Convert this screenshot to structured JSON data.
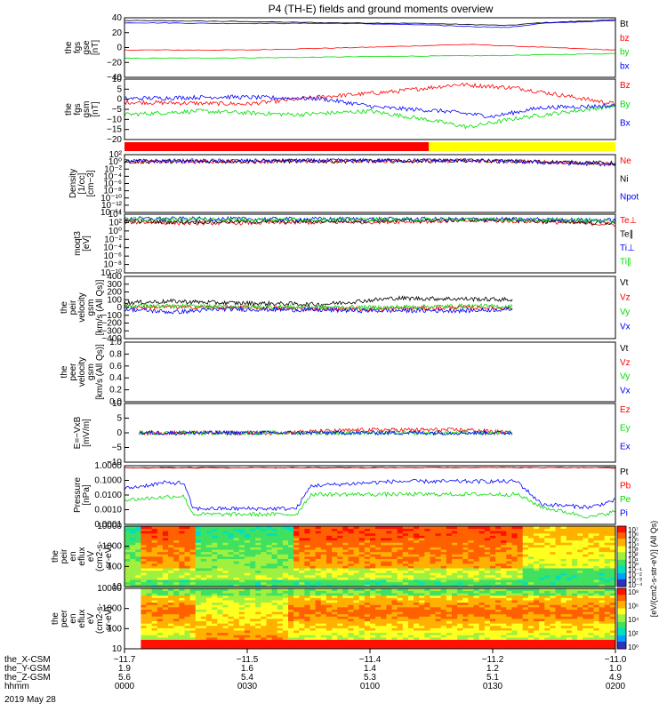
{
  "title": "P4 (TH-E) fields and ground moments overview",
  "colors": {
    "black": "#000000",
    "red": "#ff0000",
    "green": "#00dd00",
    "blue": "#0000ff",
    "yellow": "#ffff00"
  },
  "chart_data": [
    {
      "type": "line",
      "id": "fgs_hi",
      "ylabel": [
        "the",
        "fgs",
        "gse",
        "[nT]"
      ],
      "ylim": [
        -40,
        45
      ],
      "yticks": [
        "40",
        "20",
        "0",
        "−20",
        "−40"
      ],
      "series": [
        {
          "name": "Bt",
          "color": "#000000",
          "mode": "smooth",
          "points": [
            [
              0,
              41
            ],
            [
              0.2,
              40
            ],
            [
              0.4,
              38
            ],
            [
              0.6,
              37
            ],
            [
              0.78,
              34
            ],
            [
              0.85,
              38
            ],
            [
              1,
              42
            ]
          ]
        },
        {
          "name": "bz",
          "color": "#ff0000",
          "mode": "smooth",
          "points": [
            [
              0,
              -1
            ],
            [
              0.25,
              -1
            ],
            [
              0.5,
              3
            ],
            [
              0.7,
              7
            ],
            [
              0.85,
              3
            ],
            [
              1,
              -1
            ]
          ]
        },
        {
          "name": "by",
          "color": "#00dd00",
          "mode": "smooth",
          "points": [
            [
              0,
              -13
            ],
            [
              0.3,
              -12
            ],
            [
              0.55,
              -10
            ],
            [
              0.75,
              -9
            ],
            [
              1,
              -6
            ]
          ]
        },
        {
          "name": "bx",
          "color": "#0000ff",
          "mode": "smooth",
          "points": [
            [
              0,
              38
            ],
            [
              0.2,
              37
            ],
            [
              0.45,
              37
            ],
            [
              0.6,
              35
            ],
            [
              0.78,
              31
            ],
            [
              0.85,
              37
            ],
            [
              1,
              41
            ]
          ]
        }
      ]
    },
    {
      "type": "line",
      "id": "fgs_lo",
      "ylabel": [
        "the",
        "fgs",
        "gsm",
        "[nT]"
      ],
      "ylim": [
        -22,
        12
      ],
      "yticks": [
        "10",
        "5",
        "0",
        "−5",
        "−10",
        "−15",
        "−20"
      ],
      "series": [
        {
          "name": "Bz",
          "color": "#ff0000",
          "mode": "noisy",
          "points": [
            [
              0,
              -1
            ],
            [
              0.25,
              -2
            ],
            [
              0.4,
              2
            ],
            [
              0.55,
              5
            ],
            [
              0.68,
              9
            ],
            [
              0.8,
              7
            ],
            [
              1,
              -2
            ]
          ]
        },
        {
          "name": "By",
          "color": "#00dd00",
          "mode": "noisy",
          "points": [
            [
              0,
              -8
            ],
            [
              0.15,
              -6
            ],
            [
              0.35,
              -8
            ],
            [
              0.5,
              -6
            ],
            [
              0.62,
              -11
            ],
            [
              0.7,
              -15
            ],
            [
              0.8,
              -10
            ],
            [
              1,
              -3
            ]
          ]
        },
        {
          "name": "Bx",
          "color": "#0000ff",
          "mode": "noisy",
          "points": [
            [
              0,
              1
            ],
            [
              0.2,
              2
            ],
            [
              0.4,
              1
            ],
            [
              0.52,
              -4
            ],
            [
              0.65,
              -6
            ],
            [
              0.75,
              -9
            ],
            [
              0.85,
              -4
            ],
            [
              1,
              -3
            ]
          ]
        }
      ]
    },
    {
      "type": "line",
      "id": "density",
      "ylabel": [
        "Density",
        "[1/cc]",
        "[cm−3]"
      ],
      "ylim": [
        -14,
        2.2
      ],
      "yticks": [
        "10²",
        "10⁰",
        "10⁻²",
        "10⁻⁴",
        "10⁻⁶",
        "10⁻⁸",
        "10⁻¹⁰",
        "10⁻¹²",
        "10⁻¹⁴"
      ],
      "series": [
        {
          "name": "Ne",
          "color": "#ff0000",
          "mode": "noisy",
          "points": [
            [
              0,
              0.2
            ],
            [
              0.35,
              0.3
            ],
            [
              0.7,
              0.5
            ],
            [
              0.85,
              0.2
            ],
            [
              1,
              -0.4
            ]
          ]
        },
        {
          "name": "Ni",
          "color": "#000000",
          "mode": "noisy",
          "points": [
            [
              0,
              0.3
            ],
            [
              0.35,
              0.4
            ],
            [
              0.7,
              0.5
            ],
            [
              0.85,
              0.2
            ],
            [
              1,
              -0.2
            ]
          ]
        },
        {
          "name": "Npot",
          "color": "#0000ff",
          "mode": "noisy",
          "points": [
            [
              0,
              0.4
            ],
            [
              0.35,
              0.5
            ],
            [
              0.7,
              0.6
            ],
            [
              0.85,
              0.0
            ],
            [
              1,
              -0.6
            ]
          ]
        }
      ]
    },
    {
      "type": "line",
      "id": "temp",
      "ylabel": [
        "moqt3",
        "[eV]"
      ],
      "ylim": [
        -10,
        4.5
      ],
      "yticks": [
        "10⁴",
        "10²",
        "10⁰",
        "10⁻²",
        "10⁻⁴",
        "10⁻⁶",
        "10⁻⁸",
        "10⁻¹⁰"
      ],
      "series": [
        {
          "name": "Te⊥",
          "color": "#ff0000",
          "mode": "noisy",
          "points": [
            [
              0,
              2.6
            ],
            [
              0.12,
              2.3
            ],
            [
              0.35,
              2.4
            ],
            [
              0.75,
              2.9
            ],
            [
              0.85,
              2.6
            ],
            [
              1,
              2.0
            ]
          ]
        },
        {
          "name": "Te∥",
          "color": "#000000",
          "mode": "noisy",
          "points": [
            [
              0,
              2.8
            ],
            [
              0.12,
              2.6
            ],
            [
              0.35,
              2.7
            ],
            [
              0.75,
              3.1
            ],
            [
              0.85,
              2.8
            ],
            [
              1,
              2.3
            ]
          ]
        },
        {
          "name": "Ti⊥",
          "color": "#0000ff",
          "mode": "noisy",
          "points": [
            [
              0,
              3.4
            ],
            [
              0.3,
              3.3
            ],
            [
              0.6,
              3.3
            ],
            [
              0.85,
              3.2
            ],
            [
              1,
              3.0
            ]
          ]
        },
        {
          "name": "Ti∥",
          "color": "#00dd00",
          "mode": "noisy",
          "points": [
            [
              0,
              3.3
            ],
            [
              0.3,
              3.2
            ],
            [
              0.6,
              3.2
            ],
            [
              0.85,
              3.1
            ],
            [
              1,
              2.9
            ]
          ]
        }
      ]
    },
    {
      "type": "line",
      "id": "peir_v",
      "ylabel": [
        "the",
        "peir",
        "velocity",
        "gsm",
        "[km/s (All Qs)]"
      ],
      "ylim": [
        -400,
        400
      ],
      "yticks": [
        "400",
        "300",
        "200",
        "100",
        "0",
        "−100",
        "−200",
        "−300",
        "−400"
      ],
      "series": [
        {
          "name": "Vt",
          "color": "#000000",
          "mode": "noisy",
          "points": [
            [
              0,
              60
            ],
            [
              0.1,
              80
            ],
            [
              0.2,
              60
            ],
            [
              0.4,
              40
            ],
            [
              0.55,
              120
            ],
            [
              0.7,
              110
            ],
            [
              0.79,
              100
            ]
          ]
        },
        {
          "name": "Vz",
          "color": "#ff0000",
          "mode": "noisy",
          "points": [
            [
              0,
              10
            ],
            [
              0.2,
              0
            ],
            [
              0.5,
              -20
            ],
            [
              0.7,
              0
            ],
            [
              0.79,
              -10
            ]
          ]
        },
        {
          "name": "Vy",
          "color": "#00dd00",
          "mode": "noisy",
          "points": [
            [
              0,
              20
            ],
            [
              0.2,
              10
            ],
            [
              0.5,
              0
            ],
            [
              0.7,
              20
            ],
            [
              0.79,
              10
            ]
          ]
        },
        {
          "name": "Vx",
          "color": "#0000ff",
          "mode": "noisy",
          "points": [
            [
              0,
              -20
            ],
            [
              0.1,
              -60
            ],
            [
              0.2,
              -20
            ],
            [
              0.5,
              -40
            ],
            [
              0.7,
              -40
            ],
            [
              0.79,
              -20
            ]
          ]
        }
      ]
    },
    {
      "type": "line",
      "id": "peer_v",
      "ylabel": [
        "the",
        "peer",
        "velocity",
        "gsm",
        "[km/s (All Qs)]"
      ],
      "ylim": [
        0,
        1
      ],
      "yticks": [
        "1.0",
        "0.8",
        "0.6",
        "0.4",
        "0.2",
        "0.0"
      ],
      "series": [
        {
          "name": "Vt",
          "color": "#000000",
          "mode": "none",
          "points": []
        },
        {
          "name": "Vz",
          "color": "#ff0000",
          "mode": "none",
          "points": []
        },
        {
          "name": "Vy",
          "color": "#00dd00",
          "mode": "none",
          "points": []
        },
        {
          "name": "Vx",
          "color": "#0000ff",
          "mode": "none",
          "points": []
        }
      ]
    },
    {
      "type": "line",
      "id": "efield",
      "ylabel": [
        "E=−VxB",
        "[mV/m]"
      ],
      "ylim": [
        -10,
        10
      ],
      "yticks": [
        "10",
        "5",
        "0",
        "−5",
        "−10"
      ],
      "series": [
        {
          "name": "Ez",
          "color": "#ff0000",
          "mode": "noisy",
          "points": [
            [
              0.03,
              0
            ],
            [
              0.3,
              0
            ],
            [
              0.5,
              1
            ],
            [
              0.7,
              1
            ],
            [
              0.79,
              0
            ]
          ]
        },
        {
          "name": "Ey",
          "color": "#00dd00",
          "mode": "noisy",
          "points": [
            [
              0.03,
              0
            ],
            [
              0.3,
              0
            ],
            [
              0.5,
              0
            ],
            [
              0.7,
              0
            ],
            [
              0.79,
              0
            ]
          ]
        },
        {
          "name": "Ex",
          "color": "#0000ff",
          "mode": "noisy",
          "points": [
            [
              0.03,
              0
            ],
            [
              0.5,
              0
            ],
            [
              0.79,
              0
            ]
          ]
        }
      ]
    },
    {
      "type": "line",
      "id": "pressure",
      "ylabel": [
        "Pressure",
        "[nPa]"
      ],
      "ylim": [
        -4,
        0.1
      ],
      "log": true,
      "yticks": [
        "1.0000",
        "0.1000",
        "0.0100",
        "0.0010",
        "0.0001"
      ],
      "series": [
        {
          "name": "Pt",
          "color": "#000000",
          "mode": "smooth",
          "points": [
            [
              0,
              -0.03
            ],
            [
              1,
              -0.03
            ]
          ]
        },
        {
          "name": "Pb",
          "color": "#ff0000",
          "mode": "smooth",
          "points": [
            [
              0,
              -0.05
            ],
            [
              0.5,
              -0.05
            ],
            [
              0.75,
              -0.02
            ],
            [
              1,
              -0.05
            ]
          ]
        },
        {
          "name": "Pe",
          "color": "#00dd00",
          "mode": "noisy",
          "points": [
            [
              0,
              -2.3
            ],
            [
              0.12,
              -2.0
            ],
            [
              0.14,
              -3.3
            ],
            [
              0.35,
              -3.3
            ],
            [
              0.38,
              -1.9
            ],
            [
              0.8,
              -1.9
            ],
            [
              0.85,
              -2.8
            ],
            [
              0.95,
              -3.5
            ],
            [
              1,
              -3.1
            ]
          ]
        },
        {
          "name": "Pi",
          "color": "#0000ff",
          "mode": "noisy",
          "points": [
            [
              0,
              -1.5
            ],
            [
              0.08,
              -1.1
            ],
            [
              0.12,
              -1.1
            ],
            [
              0.14,
              -2.9
            ],
            [
              0.35,
              -2.9
            ],
            [
              0.38,
              -1.3
            ],
            [
              0.55,
              -1.0
            ],
            [
              0.8,
              -1.0
            ],
            [
              0.85,
              -2.6
            ],
            [
              0.95,
              -2.8
            ],
            [
              1,
              -2.3
            ]
          ]
        }
      ]
    },
    {
      "type": "heatmap",
      "id": "peir_eflux",
      "ylabel": [
        "the",
        "peir",
        "en",
        "eflux",
        "eV",
        "(cm2-s-",
        "sr-eV)"
      ],
      "ylim": [
        10,
        10000
      ],
      "yticks": [
        "10000",
        "1000",
        "100",
        "10"
      ],
      "colorbar": {
        "ticks": [
          "10⁷",
          "10⁶",
          "10⁵",
          "10⁴",
          "10³",
          "10²",
          "10¹",
          "10⁰",
          "10⁻¹",
          "10⁻²",
          "10⁻³",
          "10⁻⁴"
        ]
      }
    },
    {
      "type": "heatmap",
      "id": "peer_eflux",
      "ylabel": [
        "the",
        "peer",
        "en",
        "eflux",
        "eV",
        "(cm2-s-",
        "sr-eV)"
      ],
      "ylim": [
        5,
        20000
      ],
      "yticks": [
        "10000",
        "1000",
        "100",
        "10"
      ],
      "colorbar": {
        "ticks": [
          "10⁸",
          "10⁶",
          "10⁴",
          "10²",
          "10⁰"
        ]
      }
    }
  ],
  "legends_extra": {
    "colorbar_label": "[eV/(cm2-s-str-eV)] (All Qs)"
  },
  "xaxis": {
    "tick_labels": [
      {
        "row": "the_X-CSM",
        "values": [
          "−11.7",
          "−11.5",
          "−11.4",
          "−11.2",
          "−11.0"
        ]
      },
      {
        "row": "the_Y-GSM",
        "values": [
          "1.9",
          "1.6",
          "1.4",
          "1.2",
          "1.0"
        ]
      },
      {
        "row": "the_Z-GSM",
        "values": [
          "5.6",
          "5.4",
          "5.3",
          "5.1",
          "4.9"
        ]
      },
      {
        "row": "hhmm",
        "values": [
          "0000",
          "0030",
          "0100",
          "0130",
          "0200"
        ]
      }
    ],
    "date": "2019 May 28"
  }
}
